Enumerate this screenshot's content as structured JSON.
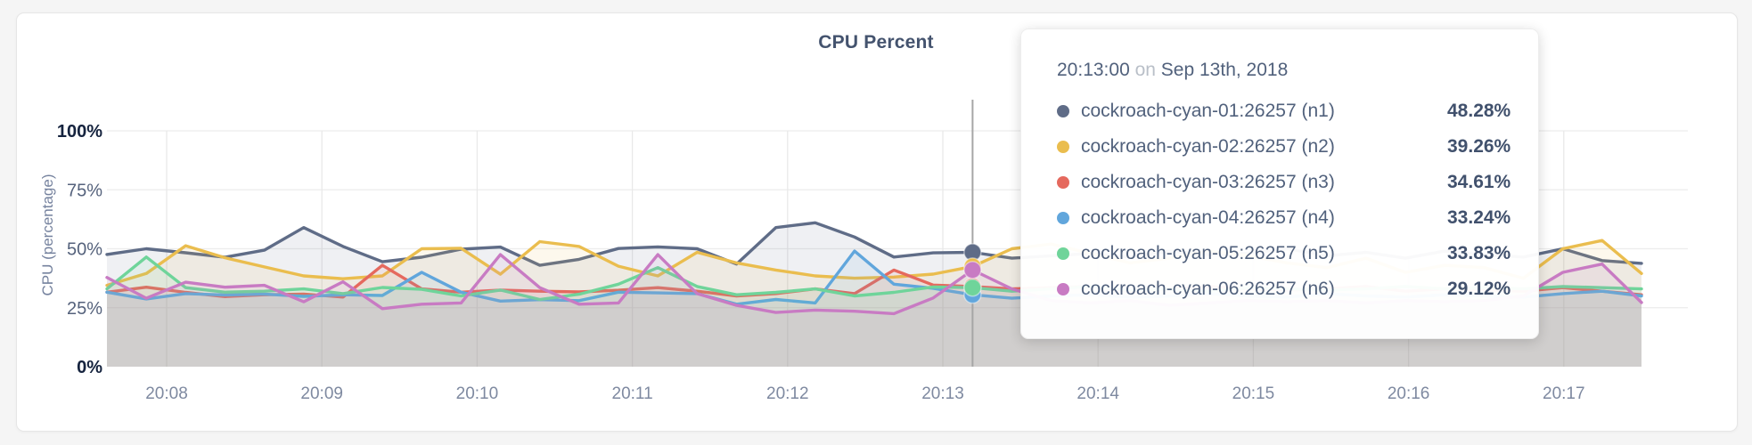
{
  "chart_data": {
    "type": "line",
    "title": "CPU Percent",
    "ylabel": "CPU (percentage)",
    "ylim": [
      0,
      100
    ],
    "grid": true,
    "legend_position": "none",
    "time_start": "20:07:37",
    "time_end": "20:17:30",
    "point_interval_seconds": 15,
    "y_tick_values": [
      0,
      25,
      50,
      75,
      100
    ],
    "y_ticks": [
      "0%",
      "25%",
      "50%",
      "75%",
      "100%"
    ],
    "x_ticks": [
      "20:08",
      "20:09",
      "20:10",
      "20:11",
      "20:12",
      "20:13",
      "20:14",
      "20:15",
      "20:16",
      "20:17"
    ],
    "series": [
      {
        "name": "cockroach-cyan-01:26257 (n1)",
        "color": "#5f6c87",
        "values": [
          47.6,
          50,
          48.3,
          46.4,
          49.4,
          59,
          51,
          44.5,
          46.4,
          49.8,
          50.7,
          43,
          45.5,
          50.1,
          50.8,
          50,
          43.5,
          59,
          61,
          55,
          46.5,
          48.28,
          48.5,
          46,
          47,
          48,
          46.5,
          49,
          47.5,
          48,
          50,
          47,
          48.5,
          46,
          49,
          47.5,
          46.5,
          50,
          45,
          43.8
        ]
      },
      {
        "name": "cockroach-cyan-02:26257 (n2)",
        "color": "#eabd4e",
        "values": [
          34.5,
          39.5,
          51.3,
          46.2,
          42.3,
          38.5,
          37.3,
          38.5,
          50,
          50.2,
          39.2,
          53,
          51,
          42.6,
          38.5,
          48.5,
          44,
          41,
          38.5,
          37.5,
          38,
          39.26,
          42.5,
          50,
          52,
          48,
          44,
          46,
          49,
          47,
          44,
          42,
          46,
          40,
          43,
          42,
          37.5,
          50,
          53.5,
          39.5
        ]
      },
      {
        "name": "cockroach-cyan-03:26257 (n3)",
        "color": "#e5695e",
        "values": [
          31.6,
          33.7,
          31.5,
          29.7,
          30.5,
          30.8,
          29.5,
          43,
          33,
          31.6,
          32.5,
          32,
          31.7,
          32.4,
          33.5,
          32,
          30,
          31,
          33,
          31,
          41,
          34.61,
          34,
          33,
          33.5,
          34,
          32,
          33,
          34,
          33,
          32.5,
          33,
          34,
          32,
          33,
          32.5,
          32,
          33.5,
          32,
          30.5
        ]
      },
      {
        "name": "cockroach-cyan-04:26257 (n4)",
        "color": "#61a6dc",
        "values": [
          31.6,
          28.7,
          31,
          30.4,
          30.8,
          29.8,
          30.5,
          30.2,
          40,
          31.6,
          27.8,
          28.4,
          28,
          31.6,
          31.3,
          31,
          26.5,
          28.5,
          27,
          49,
          35,
          33.24,
          30.5,
          29,
          30,
          30.5,
          29.5,
          30,
          31,
          30,
          29.5,
          31,
          30,
          29.5,
          30.5,
          30,
          29.5,
          31,
          32,
          30
        ]
      },
      {
        "name": "cockroach-cyan-05:26257 (n5)",
        "color": "#6fd49a",
        "values": [
          33,
          46.5,
          33.5,
          31.6,
          32,
          33,
          31,
          33.6,
          32.8,
          30,
          32.5,
          28.5,
          30.7,
          35,
          42,
          34,
          30.5,
          31.5,
          33,
          30,
          31.5,
          33.83,
          33.5,
          32,
          33,
          34,
          32.5,
          33,
          32,
          33.5,
          33,
          32.5,
          33,
          34,
          33,
          33.5,
          33,
          34,
          33.5,
          33
        ]
      },
      {
        "name": "cockroach-cyan-06:26257 (n6)",
        "color": "#c87bc3",
        "values": [
          37.8,
          29,
          35.8,
          33.7,
          34.5,
          27.5,
          36,
          24.6,
          26.5,
          27,
          47.5,
          33.5,
          26.5,
          27,
          47.5,
          31,
          26,
          23,
          24,
          23.5,
          22.5,
          29.12,
          41,
          33,
          28,
          27,
          28,
          26,
          27,
          28,
          27.5,
          28,
          27,
          28,
          27.5,
          28,
          30,
          40,
          43.5,
          27.2
        ]
      }
    ]
  },
  "tooltip": {
    "time": "20:13:00",
    "conj": "on",
    "date": "Sep 13th, 2018",
    "hover_index": 22,
    "rows": [
      {
        "label": "cockroach-cyan-01:26257 (n1)",
        "value": "48.28%"
      },
      {
        "label": "cockroach-cyan-02:26257 (n2)",
        "value": "39.26%"
      },
      {
        "label": "cockroach-cyan-03:26257 (n3)",
        "value": "34.61%"
      },
      {
        "label": "cockroach-cyan-04:26257 (n4)",
        "value": "33.24%"
      },
      {
        "label": "cockroach-cyan-05:26257 (n5)",
        "value": "33.83%"
      },
      {
        "label": "cockroach-cyan-06:26257 (n6)",
        "value": "29.12%"
      }
    ]
  }
}
